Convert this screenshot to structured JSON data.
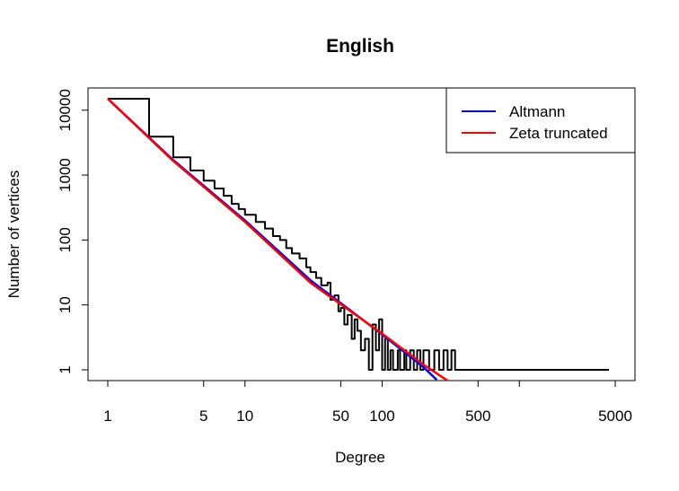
{
  "chart_data": {
    "type": "line",
    "title": "English",
    "xlabel": "Degree",
    "ylabel": "Number of vertices",
    "x_scale": "log",
    "y_scale": "log",
    "xlim": [
      1,
      5000
    ],
    "ylim": [
      1,
      15000
    ],
    "x_ticks": [
      1,
      5,
      10,
      50,
      100,
      500,
      1000,
      5000
    ],
    "x_tick_labels": [
      "1",
      "5",
      "10",
      "50",
      "100",
      "500",
      "",
      "5000"
    ],
    "y_ticks": [
      1,
      10,
      100,
      1000,
      10000
    ],
    "y_tick_labels": [
      "1",
      "10",
      "100",
      "1000",
      "10000"
    ],
    "legend_position": "top-right",
    "colors": {
      "observed": "#000000",
      "altmann": "#0000ff",
      "zeta": "#ff0000"
    },
    "series": [
      {
        "name": "",
        "color": "#000000",
        "x": [
          1,
          2,
          3,
          4,
          5,
          6,
          7,
          8,
          9,
          10,
          12,
          14,
          16,
          18,
          20,
          22,
          25,
          28,
          30,
          33,
          36,
          40,
          42,
          45,
          48,
          50,
          53,
          56,
          60,
          63,
          66,
          70,
          75,
          80,
          85,
          90,
          95,
          100,
          105,
          110,
          115,
          120,
          125,
          130,
          135,
          140,
          145,
          150,
          160,
          170,
          180,
          190,
          200,
          220,
          240,
          260,
          280,
          300,
          320,
          340,
          360,
          400,
          450,
          500,
          600,
          800,
          1000,
          1500,
          2000,
          3000,
          4000,
          4500
        ],
        "y": [
          15000,
          3900,
          1880,
          1180,
          820,
          620,
          480,
          360,
          300,
          245,
          190,
          150,
          115,
          100,
          75,
          62,
          52,
          38,
          32,
          26,
          20,
          22,
          12,
          14,
          8,
          9,
          5,
          7,
          3,
          6,
          4,
          2,
          3,
          1,
          5,
          2,
          6,
          1,
          3,
          1,
          2,
          1,
          1,
          2,
          1,
          1,
          2,
          1,
          2,
          1,
          2,
          1,
          2,
          1,
          2,
          1,
          2,
          1,
          2,
          1,
          1,
          1,
          1,
          1,
          1,
          1,
          1,
          1,
          1,
          1,
          1,
          1
        ]
      },
      {
        "name": "Altmann",
        "color": "#0000ff",
        "x": [
          1,
          3,
          10,
          30,
          100,
          200,
          250
        ],
        "y": [
          15000,
          1700,
          200,
          24,
          3.5,
          1.1,
          0.7
        ]
      },
      {
        "name": "Zeta truncated",
        "color": "#ff0000",
        "x": [
          1,
          3,
          10,
          30,
          100,
          200,
          310
        ],
        "y": [
          15000,
          1650,
          190,
          22,
          3.6,
          1.2,
          0.65
        ]
      }
    ],
    "legend": [
      "Altmann",
      "Zeta truncated"
    ]
  }
}
